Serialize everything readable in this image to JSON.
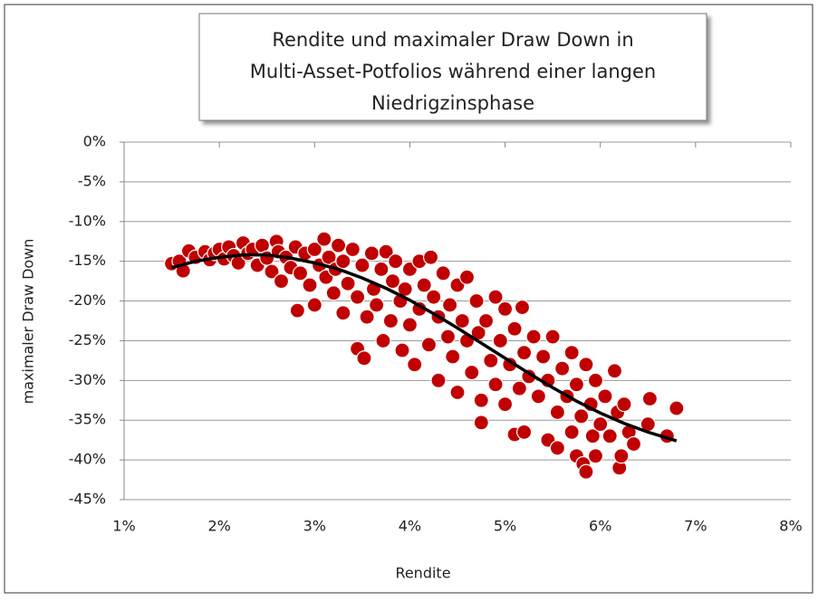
{
  "chart_data": {
    "type": "scatter",
    "title": [
      "Rendite und maximaler Draw Down in",
      "Multi-Asset-Potfolios während einer langen",
      "Niedrigzinsphase"
    ],
    "xlabel": "Rendite",
    "ylabel": "maximaler Draw Down",
    "xlim": [
      1,
      8
    ],
    "ylim": [
      -45,
      0
    ],
    "xticks": [
      {
        "value": 1,
        "label": "1%"
      },
      {
        "value": 2,
        "label": "2%"
      },
      {
        "value": 3,
        "label": "3%"
      },
      {
        "value": 4,
        "label": "4%"
      },
      {
        "value": 5,
        "label": "5%"
      },
      {
        "value": 6,
        "label": "6%"
      },
      {
        "value": 7,
        "label": "7%"
      },
      {
        "value": 8,
        "label": "8%"
      }
    ],
    "yticks": [
      {
        "value": 0,
        "label": "0%"
      },
      {
        "value": -5,
        "label": "-5%"
      },
      {
        "value": -10,
        "label": "-10%"
      },
      {
        "value": -15,
        "label": "-15%"
      },
      {
        "value": -20,
        "label": "-20%"
      },
      {
        "value": -25,
        "label": "-25%"
      },
      {
        "value": -30,
        "label": "-30%"
      },
      {
        "value": -35,
        "label": "-35%"
      },
      {
        "value": -40,
        "label": "-40%"
      },
      {
        "value": -45,
        "label": "-45%"
      }
    ],
    "grid": true,
    "series": [
      {
        "color": "#c00000",
        "x": [
          1.5,
          1.58,
          1.62,
          1.68,
          1.75,
          1.85,
          1.9,
          1.95,
          2.0,
          2.05,
          2.1,
          2.15,
          2.2,
          2.25,
          2.3,
          2.35,
          2.4,
          2.45,
          2.5,
          2.55,
          2.6,
          2.62,
          2.65,
          2.7,
          2.75,
          2.8,
          2.82,
          2.85,
          2.9,
          2.95,
          3.0,
          3.0,
          3.05,
          3.1,
          3.12,
          3.15,
          3.2,
          3.22,
          3.25,
          3.3,
          3.3,
          3.35,
          3.4,
          3.45,
          3.45,
          3.5,
          3.52,
          3.55,
          3.6,
          3.62,
          3.65,
          3.7,
          3.72,
          3.75,
          3.8,
          3.82,
          3.85,
          3.9,
          3.92,
          3.95,
          4.0,
          4.0,
          4.05,
          4.1,
          4.1,
          4.15,
          4.2,
          4.22,
          4.25,
          4.3,
          4.3,
          4.35,
          4.4,
          4.42,
          4.45,
          4.5,
          4.5,
          4.55,
          4.6,
          4.6,
          4.65,
          4.7,
          4.72,
          4.75,
          4.75,
          4.8,
          4.85,
          4.9,
          4.9,
          4.95,
          5.0,
          5.0,
          5.05,
          5.1,
          5.1,
          5.15,
          5.18,
          5.2,
          5.2,
          5.25,
          5.3,
          5.35,
          5.4,
          5.45,
          5.45,
          5.5,
          5.55,
          5.55,
          5.6,
          5.65,
          5.7,
          5.7,
          5.75,
          5.75,
          5.8,
          5.82,
          5.85,
          5.85,
          5.9,
          5.92,
          5.95,
          5.95,
          6.0,
          6.05,
          6.1,
          6.15,
          6.18,
          6.2,
          6.22,
          6.25,
          6.3,
          6.35,
          6.5,
          6.52,
          6.7,
          6.8
        ],
        "values": [
          -15.3,
          -15.0,
          -16.2,
          -13.7,
          -14.5,
          -13.8,
          -14.8,
          -14.0,
          -13.5,
          -14.7,
          -13.2,
          -14.3,
          -15.2,
          -12.7,
          -14.0,
          -13.5,
          -15.5,
          -13.0,
          -14.6,
          -16.3,
          -12.5,
          -13.8,
          -17.5,
          -14.5,
          -15.8,
          -13.2,
          -21.2,
          -16.5,
          -14.0,
          -18.0,
          -13.5,
          -20.5,
          -15.5,
          -12.2,
          -17.0,
          -14.5,
          -19.0,
          -16.0,
          -13.0,
          -21.5,
          -15.0,
          -17.8,
          -13.5,
          -19.5,
          -26.0,
          -15.5,
          -27.2,
          -22.0,
          -14.0,
          -18.5,
          -20.5,
          -16.0,
          -25.0,
          -13.8,
          -22.5,
          -17.5,
          -15.0,
          -20.0,
          -26.2,
          -18.5,
          -16.0,
          -23.0,
          -28.0,
          -15.0,
          -21.0,
          -18.0,
          -25.5,
          -14.5,
          -19.5,
          -22.0,
          -30.0,
          -16.5,
          -24.5,
          -20.5,
          -27.0,
          -18.0,
          -31.5,
          -22.5,
          -25.0,
          -17.0,
          -29.0,
          -20.0,
          -24.0,
          -32.5,
          -35.3,
          -22.5,
          -27.5,
          -19.5,
          -30.5,
          -25.0,
          -21.0,
          -33.0,
          -28.0,
          -36.8,
          -23.5,
          -31.0,
          -20.8,
          -36.5,
          -26.5,
          -29.5,
          -24.5,
          -32.0,
          -27.0,
          -37.5,
          -30.0,
          -24.5,
          -34.0,
          -38.5,
          -28.5,
          -32.0,
          -36.5,
          -26.5,
          -39.5,
          -30.5,
          -34.5,
          -40.5,
          -28.0,
          -41.5,
          -33.0,
          -37.0,
          -39.5,
          -30.0,
          -35.5,
          -32.0,
          -37.0,
          -28.8,
          -34.0,
          -41.0,
          -39.5,
          -33.0,
          -36.5,
          -38.0,
          -35.5,
          -32.3,
          -37.0,
          -33.5
        ]
      },
      {
        "type": "line",
        "color": "#000000",
        "x": [
          1.5,
          1.75,
          2.0,
          2.25,
          2.5,
          2.75,
          3.0,
          3.25,
          3.5,
          3.75,
          4.0,
          4.25,
          4.5,
          4.75,
          5.0,
          5.25,
          5.5,
          5.75,
          6.0,
          6.25,
          6.5,
          6.8
        ],
        "values": [
          -15.8,
          -15.0,
          -14.5,
          -14.2,
          -14.2,
          -14.6,
          -15.2,
          -16.0,
          -17.1,
          -18.4,
          -19.9,
          -21.6,
          -23.4,
          -25.3,
          -27.2,
          -29.1,
          -30.9,
          -32.6,
          -34.1,
          -35.4,
          -36.5,
          -37.6
        ]
      }
    ]
  }
}
